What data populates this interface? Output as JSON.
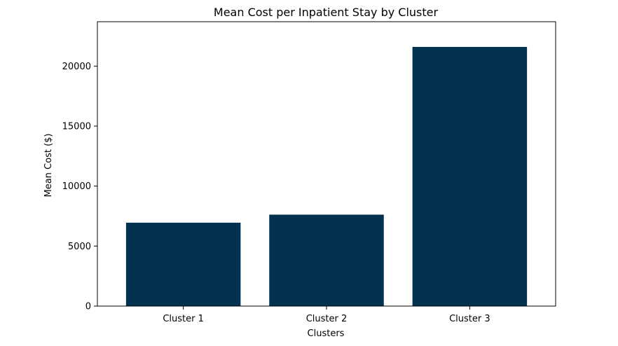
{
  "chart_data": {
    "type": "bar",
    "title": "Mean Cost per Inpatient Stay by Cluster",
    "xlabel": "Clusters",
    "ylabel": "Mean Cost ($)",
    "categories": [
      "Cluster 1",
      "Cluster 2",
      "Cluster 3"
    ],
    "values": [
      6950,
      7620,
      21600
    ],
    "ylim": [
      0,
      23700
    ],
    "yticks": [
      0,
      5000,
      10000,
      15000,
      20000
    ],
    "ytick_labels": [
      "0",
      "5000",
      "10000",
      "15000",
      "20000"
    ],
    "bar_color": "#02324f",
    "grid": false,
    "legend": "none"
  }
}
